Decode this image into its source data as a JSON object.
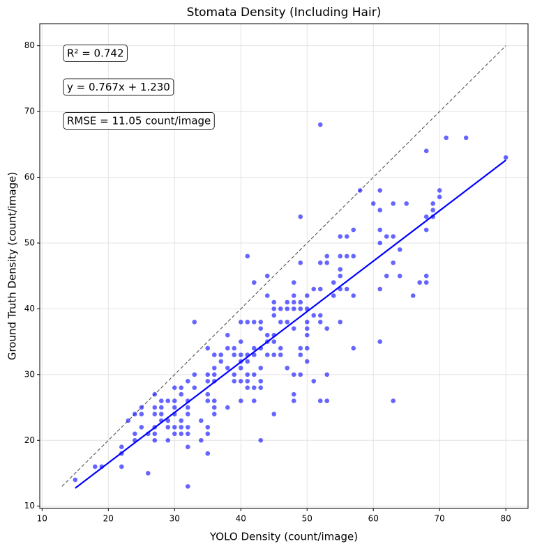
{
  "chart_data": {
    "type": "scatter",
    "title": "Stomata Density (Including Hair)",
    "x_label": "YOLO Density (count/image)",
    "y_label": "Ground Truth Density (count/image)",
    "annotations": [
      "R² = 0.742",
      "y = 0.767x + 1.230",
      "RMSE = 11.05 count/image"
    ],
    "color": "#0000ff",
    "x": [
      15,
      18,
      19,
      22,
      22,
      22,
      23,
      24,
      24,
      24,
      25,
      25,
      25,
      26,
      26,
      27,
      27,
      27,
      27,
      27,
      27,
      28,
      28,
      28,
      28,
      29,
      29,
      29,
      29,
      30,
      30,
      30,
      30,
      30,
      30,
      31,
      31,
      31,
      31,
      31,
      32,
      32,
      32,
      32,
      32,
      32,
      32,
      32,
      33,
      33,
      33,
      34,
      34,
      35,
      35,
      35,
      35,
      35,
      35,
      35,
      35,
      36,
      36,
      36,
      36,
      36,
      36,
      36,
      37,
      37,
      38,
      38,
      38,
      38,
      39,
      39,
      39,
      39,
      40,
      40,
      40,
      40,
      40,
      40,
      40,
      41,
      41,
      41,
      41,
      41,
      41,
      41,
      42,
      42,
      42,
      42,
      42,
      42,
      42,
      43,
      43,
      43,
      43,
      43,
      43,
      43,
      44,
      44,
      44,
      44,
      44,
      45,
      45,
      45,
      45,
      45,
      45,
      45,
      46,
      46,
      46,
      46,
      47,
      47,
      47,
      47,
      48,
      48,
      48,
      48,
      48,
      48,
      48,
      48,
      49,
      49,
      49,
      49,
      49,
      49,
      49,
      50,
      50,
      50,
      50,
      50,
      50,
      50,
      51,
      51,
      51,
      52,
      52,
      52,
      52,
      52,
      52,
      53,
      53,
      53,
      53,
      53,
      54,
      54,
      55,
      55,
      55,
      55,
      55,
      55,
      56,
      56,
      56,
      57,
      57,
      57,
      57,
      58,
      60,
      61,
      61,
      61,
      61,
      61,
      61,
      62,
      62,
      63,
      63,
      63,
      63,
      64,
      64,
      65,
      66,
      67,
      68,
      68,
      68,
      68,
      68,
      69,
      69,
      69,
      70,
      70,
      71,
      74,
      80
    ],
    "values": [
      14,
      16,
      16,
      19,
      18,
      16,
      23,
      21,
      20,
      24,
      25,
      24,
      22,
      21,
      15,
      27,
      25,
      24,
      22,
      21,
      20,
      26,
      25,
      24,
      23,
      26,
      23,
      22,
      20,
      28,
      26,
      25,
      24,
      22,
      21,
      28,
      23,
      22,
      21,
      27,
      29,
      26,
      25,
      24,
      22,
      21,
      19,
      13,
      38,
      30,
      28,
      23,
      20,
      34,
      30,
      29,
      27,
      26,
      22,
      21,
      18,
      33,
      31,
      30,
      29,
      26,
      25,
      24,
      33,
      32,
      36,
      34,
      31,
      25,
      34,
      33,
      30,
      29,
      38,
      35,
      33,
      32,
      31,
      29,
      26,
      48,
      38,
      33,
      32,
      30,
      29,
      28,
      44,
      38,
      34,
      33,
      30,
      28,
      26,
      38,
      37,
      34,
      31,
      29,
      28,
      20,
      45,
      42,
      36,
      35,
      33,
      41,
      40,
      39,
      36,
      35,
      33,
      24,
      40,
      38,
      34,
      33,
      41,
      40,
      38,
      31,
      44,
      42,
      41,
      40,
      37,
      30,
      27,
      26,
      54,
      47,
      41,
      40,
      34,
      33,
      30,
      42,
      40,
      38,
      37,
      36,
      34,
      32,
      43,
      39,
      29,
      68,
      47,
      43,
      39,
      38,
      26,
      48,
      47,
      37,
      30,
      26,
      44,
      42,
      51,
      48,
      46,
      45,
      43,
      38,
      51,
      48,
      43,
      52,
      48,
      42,
      34,
      58,
      56,
      58,
      55,
      52,
      50,
      43,
      35,
      51,
      45,
      56,
      51,
      47,
      26,
      49,
      45,
      56,
      42,
      44,
      64,
      54,
      52,
      45,
      44,
      56,
      55,
      54,
      58,
      57,
      66,
      66,
      63
    ],
    "fit_line": {
      "x": [
        15,
        80
      ],
      "y": [
        12.735,
        62.59
      ],
      "color": "#0000ff"
    },
    "reference_line": {
      "x": [
        13,
        80
      ],
      "y": [
        13,
        80
      ],
      "color": "#555555"
    },
    "xlim": [
      9.65,
      83.35
    ],
    "ylim": [
      9.65,
      83.35
    ],
    "xticks": [
      10,
      20,
      30,
      40,
      50,
      60,
      70,
      80
    ],
    "yticks": [
      10,
      20,
      30,
      40,
      50,
      60,
      70,
      80
    ],
    "grid": true
  }
}
